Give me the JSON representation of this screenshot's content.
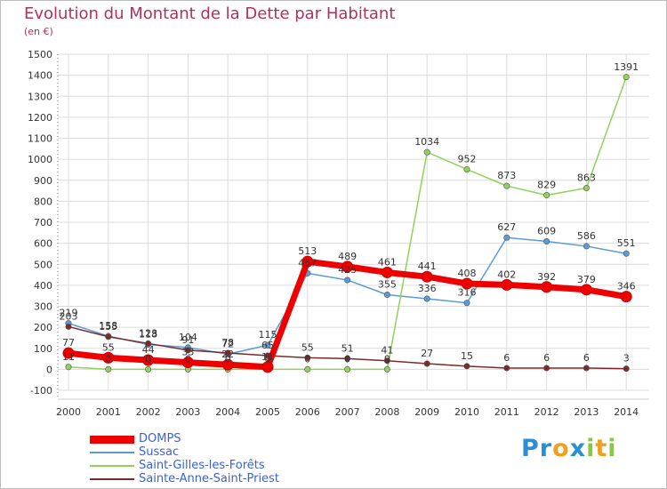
{
  "title": "Evolution du Montant de la Dette par Habitant",
  "subtitle": "(en €)",
  "logo": {
    "text": "Proxiti",
    "letters": [
      {
        "ch": "P",
        "color": "#2b8fd6"
      },
      {
        "ch": "r",
        "color": "#2b8fd6"
      },
      {
        "ch": "o",
        "color": "#f0a020"
      },
      {
        "ch": "x",
        "color": "#2b8fd6"
      },
      {
        "ch": "i",
        "color": "#8cc63f"
      },
      {
        "ch": "t",
        "color": "#f0a020"
      },
      {
        "ch": "i",
        "color": "#8cc63f"
      }
    ]
  },
  "chart_data": {
    "type": "line",
    "title": "Evolution du Montant de la Dette par Habitant",
    "subtitle": "(en €)",
    "xlabel": "",
    "ylabel": "",
    "x": [
      2000,
      2001,
      2002,
      2003,
      2004,
      2005,
      2006,
      2007,
      2008,
      2009,
      2010,
      2011,
      2012,
      2013,
      2014
    ],
    "ylim": [
      -100,
      1500
    ],
    "yticks": [
      -100,
      0,
      100,
      200,
      300,
      400,
      500,
      600,
      700,
      800,
      900,
      1000,
      1100,
      1200,
      1300,
      1400,
      1500
    ],
    "grid": true,
    "legend_position": "bottom-left",
    "series": [
      {
        "name": "Sussac",
        "color": "#5b9bd5",
        "values": [
          219,
          158,
          118,
          104,
          72,
          115,
          457,
          425,
          355,
          336,
          316,
          627,
          609,
          586,
          551
        ],
        "labels": [
          "219",
          "158",
          "118",
          "104",
          "72",
          "115",
          "457",
          "425",
          "355",
          "336",
          "316",
          "627",
          "609",
          "586",
          "551"
        ]
      },
      {
        "name": "Saint-Gilles-les-Forêts",
        "color": "#8fd35a",
        "values": [
          11,
          0,
          0,
          0,
          0,
          0,
          0,
          0,
          0,
          1034,
          952,
          873,
          829,
          863,
          1391
        ],
        "labels": [
          "11",
          "0",
          "0",
          "0",
          "0",
          "0",
          "0",
          "0",
          "0",
          "1034",
          "952",
          "873",
          "829",
          "863",
          "1391"
        ]
      },
      {
        "name": "Sainte-Anne-Saint-Priest",
        "color": "#7a2a2a",
        "values": [
          203,
          155,
          123,
          91,
          78,
          65,
          55,
          51,
          41,
          27,
          15,
          6,
          6,
          6,
          3
        ],
        "labels": [
          "203",
          "155",
          "123",
          "91",
          "78",
          "65",
          "55",
          "51",
          "41",
          "27",
          "15",
          "6",
          "6",
          "6",
          "3"
        ]
      },
      {
        "name": "DOMPS",
        "color": "#ee0000",
        "values": [
          77,
          55,
          44,
          33,
          22,
          11,
          513,
          489,
          461,
          441,
          408,
          402,
          392,
          379,
          346
        ],
        "labels": [
          "77",
          "55",
          "44",
          "33",
          "22",
          "11",
          "513",
          "489",
          "461",
          "441",
          "408",
          "402",
          "392",
          "379",
          "346"
        ]
      }
    ]
  }
}
